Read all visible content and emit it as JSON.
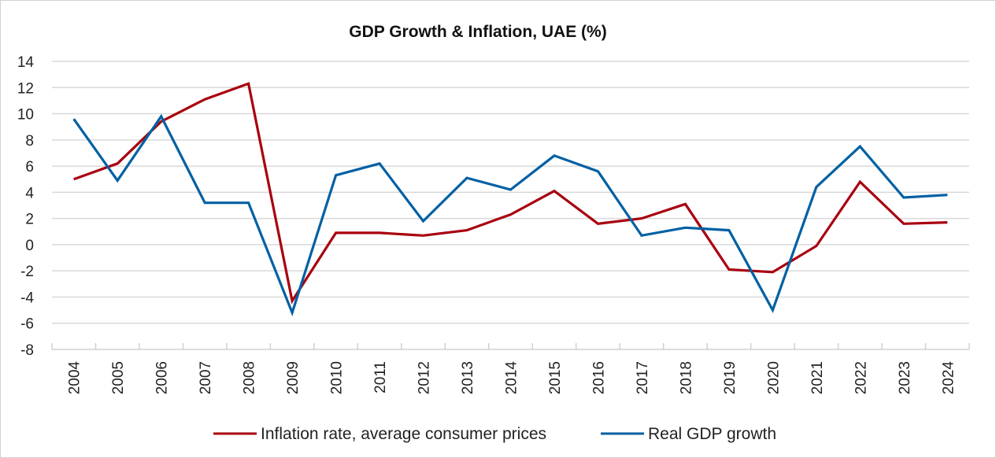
{
  "chart_data": {
    "type": "line",
    "title": "GDP Growth & Inflation, UAE (%)",
    "xlabel": "",
    "ylabel": "",
    "ylim": [
      -8,
      14
    ],
    "yticks": [
      14,
      12,
      10,
      8,
      6,
      4,
      2,
      0,
      -2,
      -4,
      -6,
      -8
    ],
    "grid": true,
    "legend": "bottom",
    "categories": [
      "2004",
      "2005",
      "2006",
      "2007",
      "2008",
      "2009",
      "2010",
      "2011",
      "2012",
      "2013",
      "2014",
      "2015",
      "2016",
      "2017",
      "2018",
      "2019",
      "2020",
      "2021",
      "2022",
      "2023",
      "2024"
    ],
    "series": [
      {
        "name": "Inflation rate, average consumer prices",
        "color": "#A8000F",
        "values": [
          5.0,
          6.2,
          9.4,
          11.1,
          12.3,
          -4.3,
          0.9,
          0.9,
          0.7,
          1.1,
          2.3,
          4.1,
          1.6,
          2.0,
          3.1,
          -1.9,
          -2.1,
          -0.1,
          4.8,
          1.6,
          1.7
        ]
      },
      {
        "name": "Real GDP growth",
        "color": "#0060A3",
        "values": [
          9.6,
          4.9,
          9.8,
          3.2,
          3.2,
          -5.2,
          5.3,
          6.2,
          1.8,
          5.1,
          4.2,
          6.8,
          5.6,
          0.7,
          1.3,
          1.1,
          -5.0,
          4.4,
          7.5,
          3.6,
          3.8
        ]
      }
    ]
  }
}
